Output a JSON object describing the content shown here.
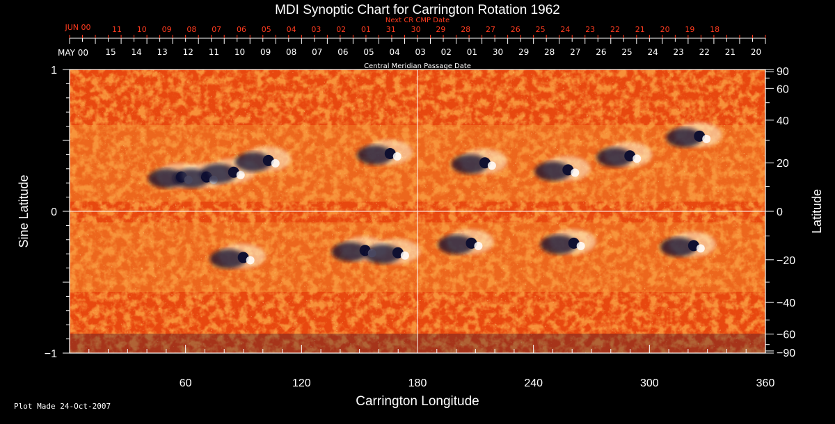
{
  "chart_data": {
    "type": "heatmap",
    "title": "MDI Synoptic Chart for Carrington Rotation 1962",
    "top_axis_label": "Central Meridian Passage Date",
    "top_red_axis_label": "Next CR CMP Date",
    "xlabel": "Carrington Longitude",
    "ylabel_left": "Sine Latitude",
    "ylabel_right": "Latitude",
    "xlim": [
      0,
      360
    ],
    "ylim": [
      -1,
      1
    ],
    "x_ticks": [
      "60",
      "120",
      "180",
      "240",
      "300",
      "360"
    ],
    "x_tick_values": [
      60,
      120,
      180,
      240,
      300,
      360
    ],
    "y_left_ticks": [
      "1",
      "0",
      "−1"
    ],
    "y_left_tick_values": [
      1,
      0,
      -1
    ],
    "y_right_ticks": [
      "90",
      "60",
      "40",
      "20",
      "0",
      "−20",
      "−40",
      "−60",
      "−90"
    ],
    "y_right_tick_values": [
      90,
      60,
      40,
      20,
      0,
      -20,
      -40,
      -60,
      -90
    ],
    "cmp_month_label": "MAY 00",
    "cmp_dates": [
      "15",
      "14",
      "13",
      "12",
      "11",
      "10",
      "09",
      "08",
      "07",
      "06",
      "05",
      "04",
      "03",
      "02",
      "01",
      "30",
      "29",
      "28",
      "27",
      "26",
      "25",
      "24",
      "23",
      "22",
      "21",
      "20"
    ],
    "next_cr_month_label": "JUN 00",
    "next_cr_dates": [
      "11",
      "10",
      "09",
      "08",
      "07",
      "06",
      "05",
      "04",
      "03",
      "02",
      "01",
      "31",
      "30",
      "29",
      "28",
      "27",
      "26",
      "25",
      "24",
      "23",
      "22",
      "21",
      "20",
      "19",
      "18"
    ],
    "grid": "lines at 180 longitude and 0 latitude",
    "colors": {
      "background": "#000000",
      "field_base": "#e8480f",
      "field_strong_positive": "#fff8d8",
      "field_negative": "#101030",
      "axis": "#ffffff",
      "next_cr_text": "#ff3b1f"
    },
    "active_regions": [
      {
        "lon": 55,
        "lat": 14,
        "polarity": "mixed"
      },
      {
        "lon": 68,
        "lat": 14,
        "polarity": "mixed"
      },
      {
        "lon": 82,
        "lat": 16,
        "polarity": "mixed"
      },
      {
        "lon": 100,
        "lat": 21,
        "polarity": "mixed"
      },
      {
        "lon": 163,
        "lat": 24,
        "polarity": "mixed"
      },
      {
        "lon": 212,
        "lat": 20,
        "polarity": "mixed"
      },
      {
        "lon": 255,
        "lat": 17,
        "polarity": "mixed"
      },
      {
        "lon": 287,
        "lat": 23,
        "polarity": "mixed"
      },
      {
        "lon": 323,
        "lat": 32,
        "polarity": "mixed"
      },
      {
        "lon": 87,
        "lat": -19,
        "polarity": "mixed"
      },
      {
        "lon": 150,
        "lat": -16,
        "polarity": "mixed"
      },
      {
        "lon": 167,
        "lat": -17,
        "polarity": "mixed"
      },
      {
        "lon": 205,
        "lat": -13,
        "polarity": "mixed"
      },
      {
        "lon": 258,
        "lat": -13,
        "polarity": "mixed"
      },
      {
        "lon": 320,
        "lat": -14,
        "polarity": "mixed"
      }
    ]
  },
  "footer": {
    "plot_made": "Plot Made 24-Oct-2007"
  }
}
